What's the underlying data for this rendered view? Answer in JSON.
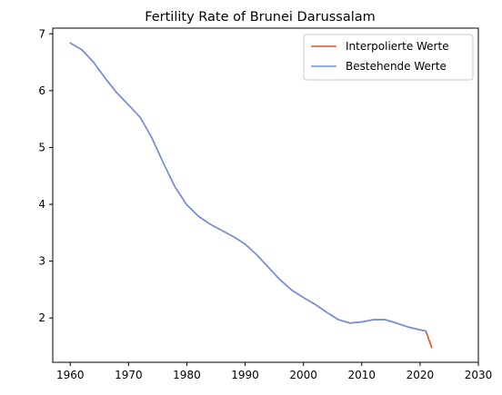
{
  "chart_data": {
    "type": "line",
    "title": "Fertility Rate of Brunei Darussalam",
    "xlabel": "",
    "ylabel": "",
    "xlim": [
      1957,
      2030
    ],
    "ylim": [
      1.22,
      7.1
    ],
    "xticks": [
      1960,
      1970,
      1980,
      1990,
      2000,
      2010,
      2020,
      2030
    ],
    "yticks": [
      2,
      3,
      4,
      5,
      6,
      7
    ],
    "grid": false,
    "legend_position": "top-right",
    "series": [
      {
        "name": "Interpolierte Werte",
        "color": "#e8501e",
        "x": [
          1960,
          1962,
          1964,
          1966,
          1968,
          1970,
          1972,
          1974,
          1976,
          1978,
          1980,
          1982,
          1984,
          1986,
          1988,
          1990,
          1992,
          1994,
          1996,
          1998,
          2000,
          2002,
          2004,
          2006,
          2008,
          2010,
          2012,
          2014,
          2016,
          2018,
          2020,
          2021,
          2022
        ],
        "y": [
          6.84,
          6.72,
          6.5,
          6.22,
          5.96,
          5.75,
          5.53,
          5.17,
          4.72,
          4.3,
          3.99,
          3.79,
          3.65,
          3.54,
          3.43,
          3.3,
          3.11,
          2.89,
          2.67,
          2.49,
          2.36,
          2.24,
          2.1,
          1.97,
          1.91,
          1.93,
          1.97,
          1.97,
          1.91,
          1.84,
          1.79,
          1.77,
          1.48
        ]
      },
      {
        "name": "Bestehende Werte",
        "color": "#6b93e4",
        "x": [
          1960,
          1962,
          1964,
          1966,
          1968,
          1970,
          1972,
          1974,
          1976,
          1978,
          1980,
          1982,
          1984,
          1986,
          1988,
          1990,
          1992,
          1994,
          1996,
          1998,
          2000,
          2002,
          2004,
          2006,
          2008,
          2010,
          2012,
          2014,
          2016,
          2018,
          2020,
          2021
        ],
        "y": [
          6.84,
          6.72,
          6.5,
          6.22,
          5.96,
          5.75,
          5.53,
          5.17,
          4.72,
          4.3,
          3.99,
          3.79,
          3.65,
          3.54,
          3.43,
          3.3,
          3.11,
          2.89,
          2.67,
          2.49,
          2.36,
          2.24,
          2.1,
          1.97,
          1.91,
          1.93,
          1.97,
          1.97,
          1.91,
          1.84,
          1.79,
          1.77
        ]
      }
    ]
  }
}
